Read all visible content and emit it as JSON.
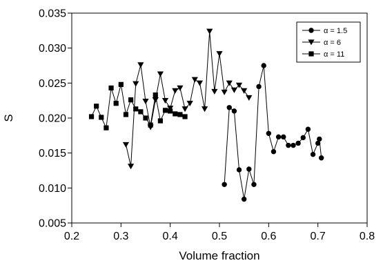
{
  "chart_data": {
    "type": "line",
    "xlabel": "Volume fraction",
    "ylabel": "S",
    "xlim": [
      0.2,
      0.8
    ],
    "ylim": [
      0.005,
      0.035
    ],
    "xticks": [
      "0.2",
      "0.3",
      "0.4",
      "0.5",
      "0.6",
      "0.7",
      "0.8"
    ],
    "yticks": [
      "0.005",
      "0.010",
      "0.015",
      "0.020",
      "0.025",
      "0.030",
      "0.035"
    ],
    "grid": false,
    "legend_position": "top-right",
    "series": [
      {
        "name": "α = 1.5",
        "marker": "circle",
        "x": [
          0.51,
          0.52,
          0.53,
          0.54,
          0.55,
          0.56,
          0.57,
          0.58,
          0.59,
          0.6,
          0.61,
          0.62,
          0.63,
          0.64,
          0.65,
          0.66,
          0.67,
          0.68,
          0.69,
          0.7,
          0.703,
          0.707
        ],
        "y": [
          0.0105,
          0.0215,
          0.021,
          0.0126,
          0.0084,
          0.0127,
          0.0105,
          0.0245,
          0.0275,
          0.0178,
          0.0152,
          0.0173,
          0.0173,
          0.0161,
          0.0161,
          0.0164,
          0.0172,
          0.0184,
          0.0148,
          0.0164,
          0.017,
          0.0143
        ]
      },
      {
        "name": "α = 6",
        "marker": "triangle-down",
        "x": [
          0.31,
          0.32,
          0.33,
          0.34,
          0.35,
          0.36,
          0.37,
          0.38,
          0.39,
          0.4,
          0.41,
          0.42,
          0.43,
          0.44,
          0.45,
          0.46,
          0.47,
          0.48,
          0.49,
          0.5,
          0.51,
          0.52,
          0.53,
          0.54,
          0.55,
          0.56
        ],
        "y": [
          0.0162,
          0.0131,
          0.0249,
          0.0276,
          0.0224,
          0.0187,
          0.0226,
          0.0263,
          0.0225,
          0.0214,
          0.0239,
          0.0243,
          0.0213,
          0.0221,
          0.0255,
          0.025,
          0.0213,
          0.0324,
          0.0238,
          0.0292,
          0.0237,
          0.025,
          0.024,
          0.0247,
          0.0239,
          0.0229
        ]
      },
      {
        "name": "α = 11",
        "marker": "square",
        "x": [
          0.24,
          0.25,
          0.26,
          0.27,
          0.28,
          0.29,
          0.3,
          0.31,
          0.32,
          0.33,
          0.34,
          0.35,
          0.36,
          0.37,
          0.38,
          0.39,
          0.4,
          0.41,
          0.42,
          0.43
        ],
        "y": [
          0.0202,
          0.0217,
          0.0201,
          0.0186,
          0.0243,
          0.0221,
          0.0248,
          0.0205,
          0.0226,
          0.0213,
          0.0209,
          0.02,
          0.019,
          0.0233,
          0.0196,
          0.0211,
          0.021,
          0.0206,
          0.0205,
          0.0202
        ]
      }
    ]
  }
}
